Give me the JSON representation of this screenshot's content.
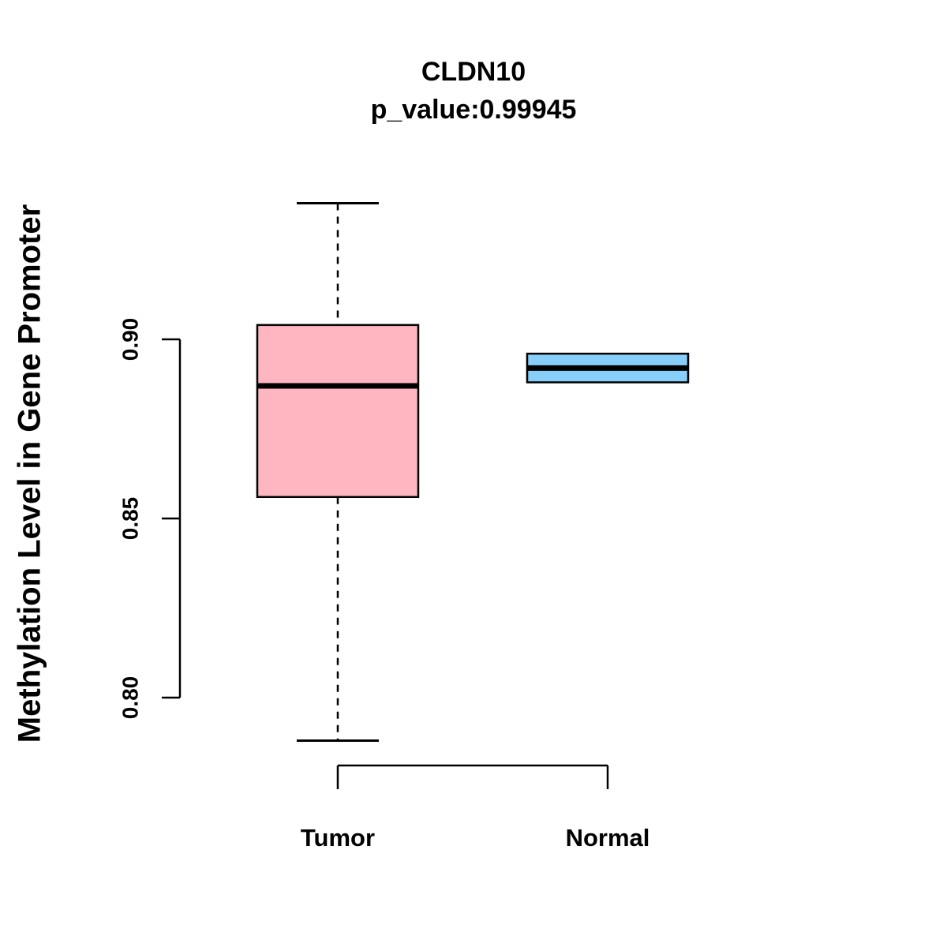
{
  "chart_data": {
    "type": "boxplot",
    "title": "CLDN10",
    "subtitle": "p_value:0.99945",
    "ylabel": "Methylation Level in Gene Promoter",
    "xlabel": "",
    "categories": [
      "Tumor",
      "Normal"
    ],
    "yticks": [
      0.8,
      0.85,
      0.9
    ],
    "ylim": [
      0.775,
      0.945
    ],
    "grid": false,
    "legend": "none",
    "groups": [
      {
        "label": "Tumor",
        "color": "#FFB6C1",
        "whisker_low": 0.788,
        "q1": 0.856,
        "median": 0.887,
        "q3": 0.904,
        "whisker_high": 0.938
      },
      {
        "label": "Normal",
        "color": "#87CEFA",
        "whisker_low": 0.888,
        "q1": 0.888,
        "median": 0.892,
        "q3": 0.896,
        "whisker_high": 0.896
      }
    ]
  }
}
